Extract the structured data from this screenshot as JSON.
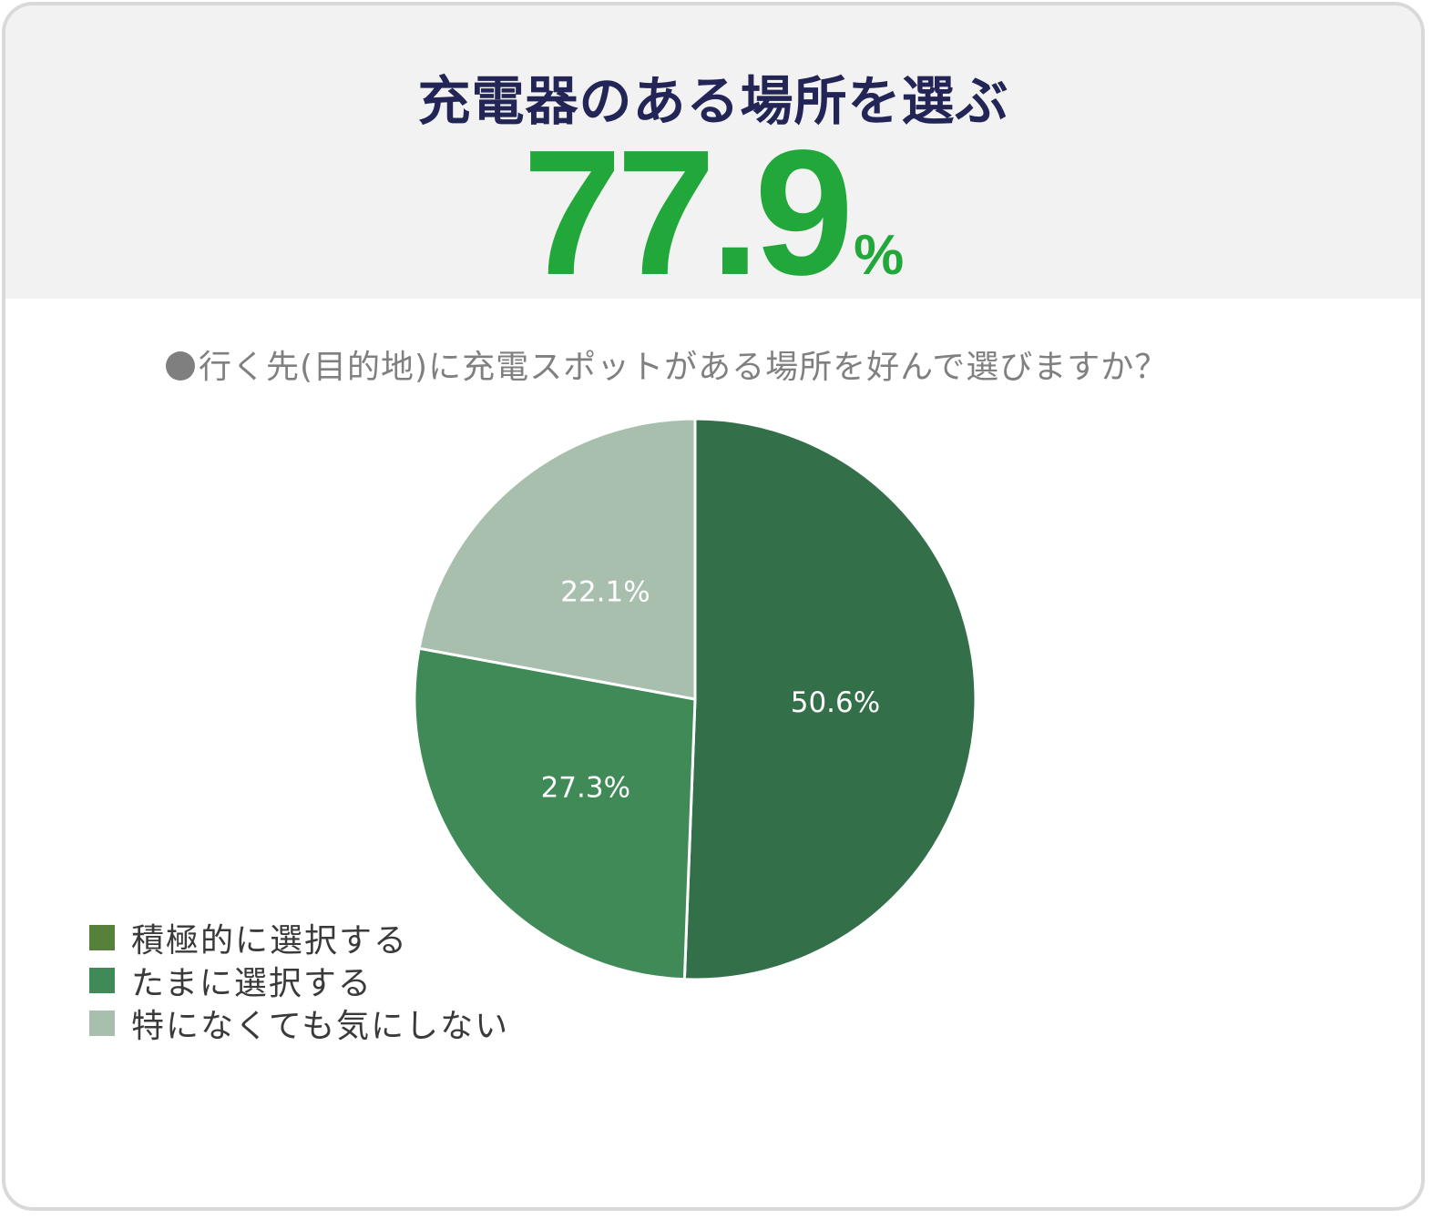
{
  "card": {
    "headline": "充電器のある場所を選ぶ",
    "big_number": "77.9",
    "big_unit": "%",
    "question": "行く先(目的地)に充電スポットがある場所を好んで選びますか？"
  },
  "chart_data": {
    "type": "pie",
    "title": "",
    "slices": [
      {
        "name": "積極的に選択する",
        "value": 50.6,
        "label": "50.6%",
        "color": "#33704a"
      },
      {
        "name": "たまに選択する",
        "value": 27.3,
        "label": "27.3%",
        "color": "#3f8a56"
      },
      {
        "name": "特になくても気にしない",
        "value": 22.1,
        "label": "22.1%",
        "color": "#a8bfae"
      }
    ],
    "legend": {
      "placement": "bottom-left",
      "items": [
        {
          "label": "積極的に選択する",
          "color": "#56813a"
        },
        {
          "label": "たまに選択する",
          "color": "#3f8a56"
        },
        {
          "label": "特になくても気にしない",
          "color": "#a8bfae"
        }
      ]
    }
  }
}
